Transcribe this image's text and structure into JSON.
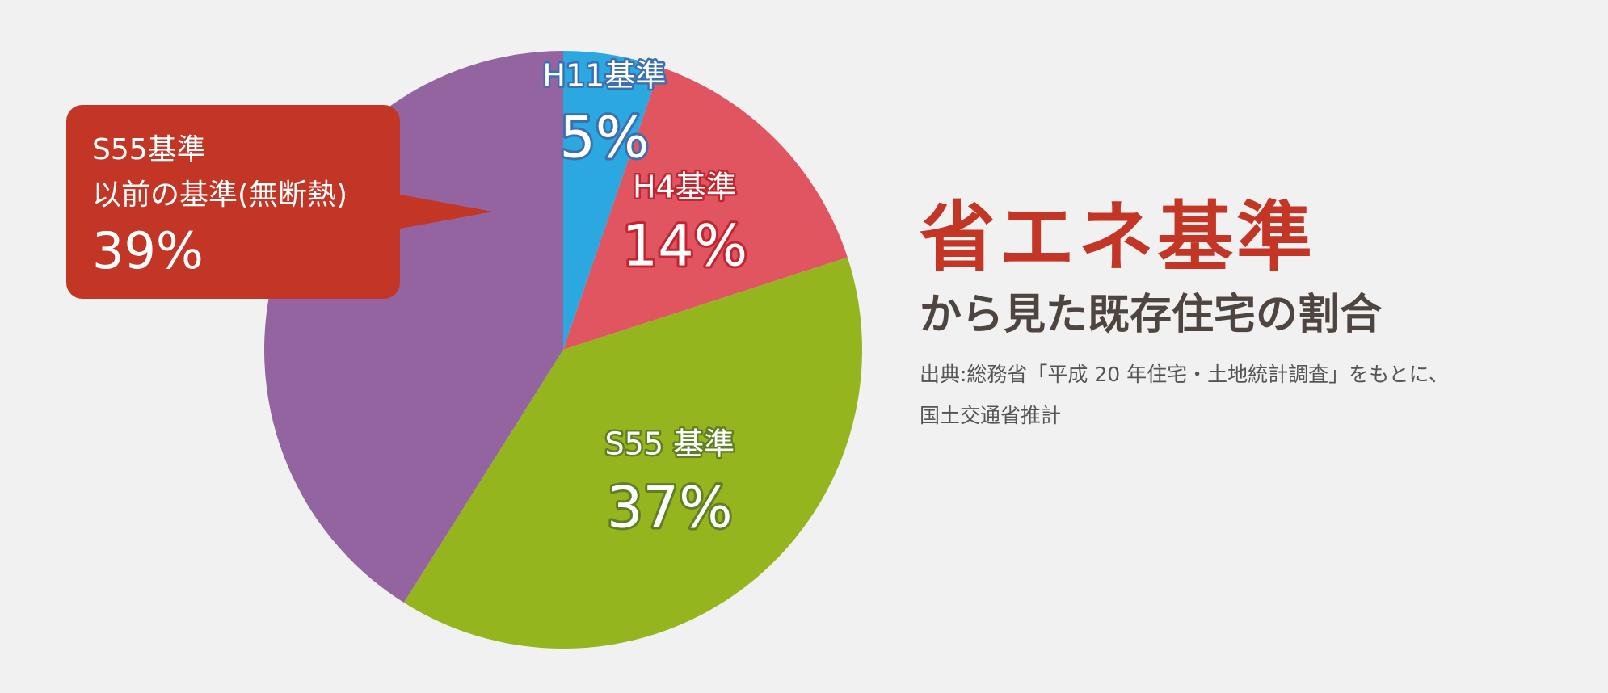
{
  "colors": {
    "background": "#f1f1f1",
    "callout": "#c33626",
    "title": "#c33626",
    "subtitle": "#4e4440",
    "source": "#555555"
  },
  "chart_data": {
    "type": "pie",
    "start": "12 o'clock",
    "direction": "clockwise",
    "slices": [
      {
        "label": "H11基準",
        "value": 5,
        "value_text": "5%",
        "color": "#2ba8e0",
        "outline": "#3d6fb0"
      },
      {
        "label": "H4基準",
        "value": 14,
        "value_text": "14%",
        "color": "#e05560",
        "outline": "#c2252f"
      },
      {
        "label": "S55 基準",
        "value": 37,
        "value_text": "37%",
        "color": "#95b51f",
        "outline": "#5e7f22"
      },
      {
        "label": "S55基準 以前の基準(無断熱)",
        "value": 39,
        "value_text": "39%",
        "color": "#9464a0",
        "outline": ""
      }
    ]
  },
  "callout": {
    "line1": "S55基準",
    "line2": "以前の基準(無断熱)",
    "value": "39%"
  },
  "title": {
    "main": "省エネ基準",
    "sub": "から見た既存住宅の割合"
  },
  "source": {
    "line1": "出典:総務省「平成 20 年住宅・土地統計調査」をもとに、",
    "line2": "国土交通省推計"
  }
}
